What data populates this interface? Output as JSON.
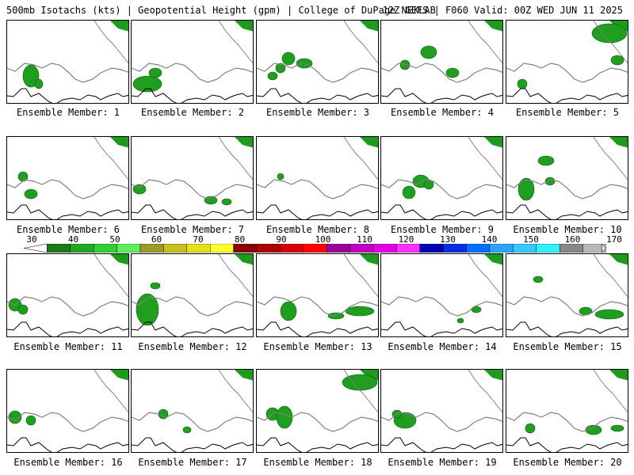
{
  "header": {
    "left": "500mb Isotachs (kts) | Geopotential Height (gpm) | College of DuPage NEXLAB",
    "right": "12Z GEFS | F060 Valid: 00Z WED JUN 11 2025"
  },
  "members": [
    {
      "label": "Ensemble Member: 1"
    },
    {
      "label": "Ensemble Member: 2"
    },
    {
      "label": "Ensemble Member: 3"
    },
    {
      "label": "Ensemble Member: 4"
    },
    {
      "label": "Ensemble Member: 5"
    },
    {
      "label": "Ensemble Member: 6"
    },
    {
      "label": "Ensemble Member: 7"
    },
    {
      "label": "Ensemble Member: 8"
    },
    {
      "label": "Ensemble Member: 9"
    },
    {
      "label": "Ensemble Member: 10"
    },
    {
      "label": "Ensemble Member: 11"
    },
    {
      "label": "Ensemble Member: 12"
    },
    {
      "label": "Ensemble Member: 13"
    },
    {
      "label": "Ensemble Member: 14"
    },
    {
      "label": "Ensemble Member: 15"
    },
    {
      "label": "Ensemble Member: 16"
    },
    {
      "label": "Ensemble Member: 17"
    },
    {
      "label": "Ensemble Member: 18"
    },
    {
      "label": "Ensemble Member: 19"
    },
    {
      "label": "Ensemble Member: 20"
    }
  ],
  "colorbar": {
    "ticks": [
      "30",
      "40",
      "50",
      "60",
      "70",
      "80",
      "90",
      "100",
      "110",
      "120",
      "130",
      "140",
      "150",
      "160",
      "170"
    ],
    "colors": [
      "#1a7a1a",
      "#23a623",
      "#2fd02f",
      "#5cf05c",
      "#9e9a2a",
      "#c8c01e",
      "#e6e01a",
      "#ffff30",
      "#8a0000",
      "#b00000",
      "#d60000",
      "#ff0000",
      "#9a009a",
      "#c000c0",
      "#e000e0",
      "#ff30ff",
      "#0000b0",
      "#0030e0",
      "#0070ff",
      "#2aa6ff",
      "#36c8ff",
      "#30f0ff",
      "#888888",
      "#b8b8b8"
    ]
  }
}
